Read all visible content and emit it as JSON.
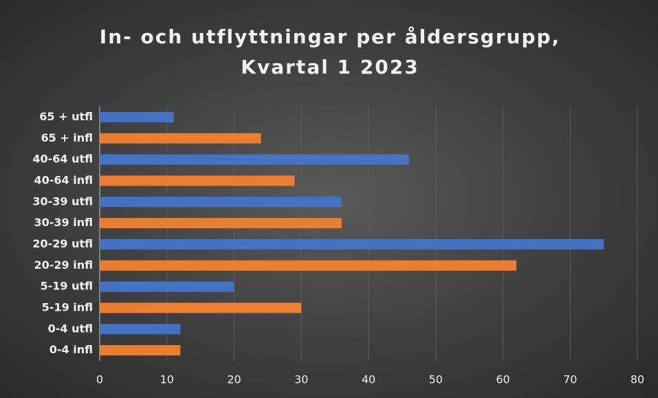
{
  "chart_data": {
    "type": "bar",
    "orientation": "horizontal",
    "title": "In- och utflyttningar per åldersgrupp, Kvartal 1 2023",
    "categories": [
      "0-4 infl",
      "0-4 utfl",
      "5-19 infl",
      "5-19 utfl",
      "20-29 infl",
      "20-29 utfl",
      "30-39 infl",
      "30-39 utfl",
      "40-64 infl",
      "40-64 utfl",
      "65 + infl",
      "65 + utfl"
    ],
    "values": [
      12,
      12,
      30,
      20,
      62,
      75,
      36,
      36,
      29,
      46,
      24,
      11
    ],
    "colors": [
      "#ed7d31",
      "#4472c4",
      "#ed7d31",
      "#4472c4",
      "#ed7d31",
      "#4472c4",
      "#ed7d31",
      "#4472c4",
      "#ed7d31",
      "#4472c4",
      "#ed7d31",
      "#4472c4"
    ],
    "xlim": [
      0,
      80
    ],
    "xticks": [
      0,
      10,
      20,
      30,
      40,
      50,
      60,
      70,
      80
    ],
    "grid": true
  }
}
